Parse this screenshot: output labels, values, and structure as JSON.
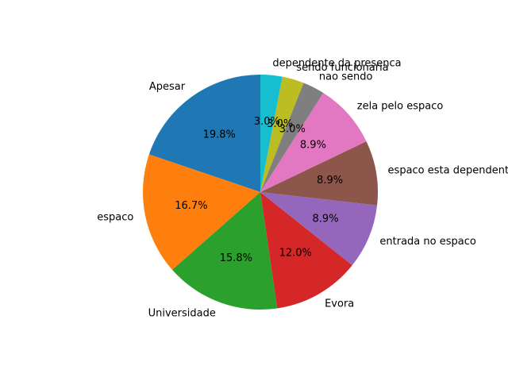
{
  "chart_data": {
    "type": "pie",
    "title": "",
    "start_angle_deg": 90,
    "direction": "counterclockwise",
    "slices": [
      {
        "label": "Apesar",
        "value": 19.8,
        "pct_label": "19.8%",
        "color": "#1f77b4"
      },
      {
        "label": "espaco",
        "value": 16.7,
        "pct_label": "16.7%",
        "color": "#ff7f0e"
      },
      {
        "label": "Universidade",
        "value": 15.8,
        "pct_label": "15.8%",
        "color": "#2ca02c"
      },
      {
        "label": "Evora",
        "value": 12.0,
        "pct_label": "12.0%",
        "color": "#d62728"
      },
      {
        "label": "entrada no espaco",
        "value": 8.9,
        "pct_label": "8.9%",
        "color": "#9467bd"
      },
      {
        "label": "espaco esta dependente",
        "value": 8.9,
        "pct_label": "8.9%",
        "color": "#8c564b"
      },
      {
        "label": "zela pelo espaco",
        "value": 8.9,
        "pct_label": "8.9%",
        "color": "#e377c2"
      },
      {
        "label": "nao sendo",
        "value": 3.0,
        "pct_label": "3.0%",
        "color": "#7f7f7f"
      },
      {
        "label": "sendo funcionaria",
        "value": 3.0,
        "pct_label": "3.0%",
        "color": "#bcbd22"
      },
      {
        "label": "dependente da presenca",
        "value": 3.0,
        "pct_label": "3.0%",
        "color": "#17becf"
      }
    ]
  }
}
